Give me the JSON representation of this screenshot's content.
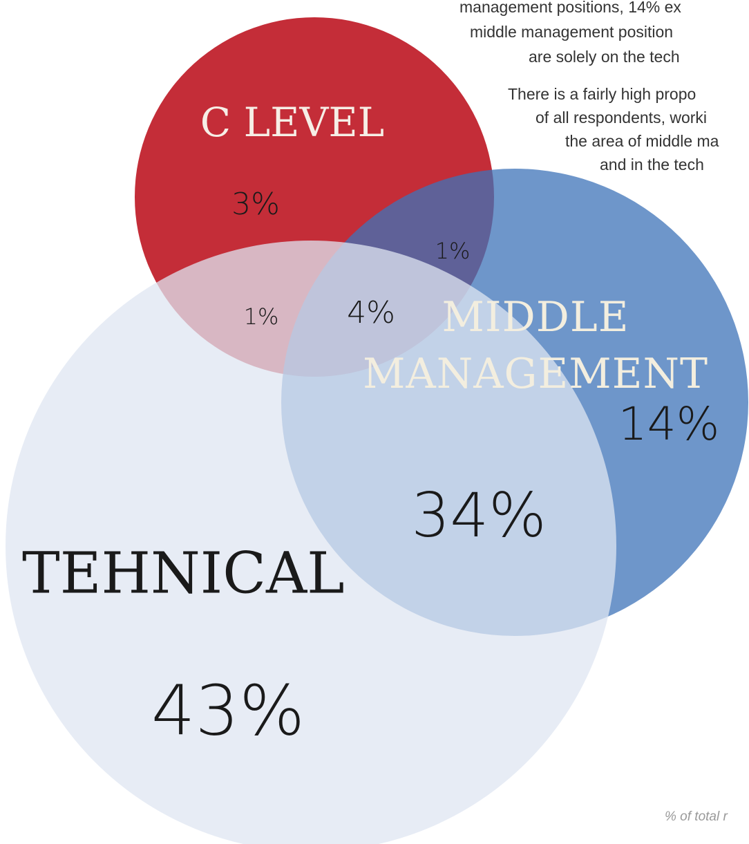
{
  "chart_data": {
    "type": "venn",
    "sets": [
      {
        "name": "C LEVEL",
        "color": "#c42d38"
      },
      {
        "name": "MIDDLE MANAGEMENT",
        "color": "#3d73b8"
      },
      {
        "name": "TEHNICAL",
        "color": "#dfe6f2"
      }
    ],
    "values": [
      3,
      1,
      1,
      4,
      14,
      34,
      43
    ],
    "value_labels": [
      "3%",
      "1%",
      "1%",
      "4%",
      "14%",
      "34%",
      "43%"
    ],
    "notes": [
      "management positions, 14% ex",
      "middle management position",
      "are solely on the tech",
      "There is a fairly high propo",
      "of all respondents, worki",
      "the area of middle ma",
      "and in the tech"
    ],
    "footnote": "% of total r"
  }
}
